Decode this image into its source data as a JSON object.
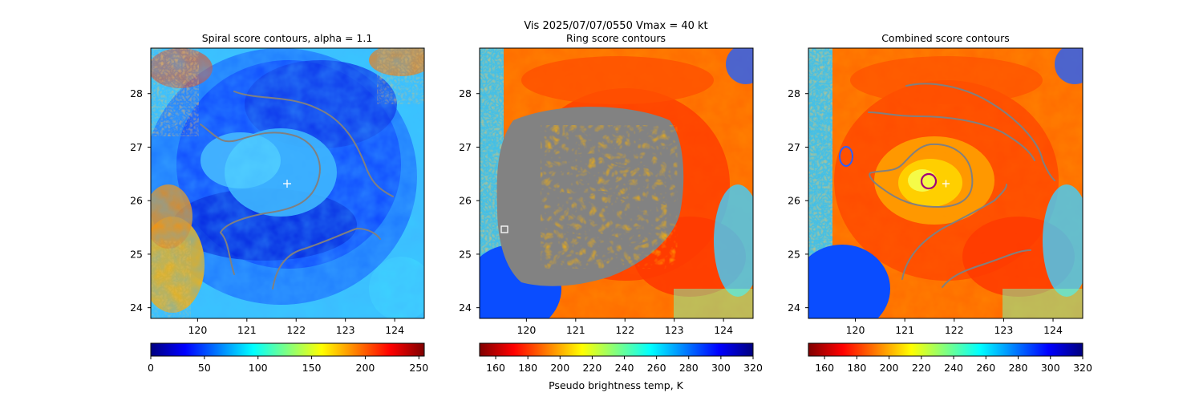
{
  "figure": {
    "suptitle_line1": "Vis  2025/07/07/0550    Vmax = 40 kt"
  },
  "colorscale": {
    "name": "jet",
    "stops": [
      "#7f0000",
      "#ff0000",
      "#ff7f00",
      "#ffff00",
      "#80ff80",
      "#00ffff",
      "#007fff",
      "#0000ff",
      "#00007f"
    ]
  },
  "chart_data": [
    {
      "type": "heatmap",
      "title": "Spiral score contours, alpha =  1.1",
      "x_ticks": [
        "120",
        "121",
        "122",
        "123",
        "124"
      ],
      "y_ticks": [
        "24",
        "25",
        "26",
        "27",
        "28"
      ],
      "xlim": [
        119.05,
        124.6
      ],
      "ylim": [
        23.8,
        28.85
      ],
      "center_marker": {
        "lon": 121.8,
        "lat": 26.32,
        "symbol": "+"
      },
      "colorbar": {
        "min": 0,
        "max": 255,
        "ticks": [
          "0",
          "50",
          "100",
          "150",
          "200",
          "250"
        ],
        "label": "",
        "reversed_jet": true
      },
      "dominant_color": "blue",
      "contour_color": "#808080"
    },
    {
      "type": "heatmap",
      "title": "Ring score contours",
      "x_ticks": [
        "120",
        "121",
        "122",
        "123",
        "124"
      ],
      "y_ticks": [
        "24",
        "25",
        "26",
        "27",
        "28"
      ],
      "xlim": [
        119.05,
        124.6
      ],
      "ylim": [
        23.8,
        28.85
      ],
      "square_marker": {
        "lon": 119.5,
        "lat": 25.5
      },
      "colorbar": {
        "min": 150,
        "max": 320,
        "ticks": [
          "160",
          "180",
          "200",
          "220",
          "240",
          "260",
          "280",
          "300",
          "320"
        ],
        "label": "Pseudo brightness temp, K"
      },
      "dominant_color": "red-orange",
      "masked_region_color": "#808080"
    },
    {
      "type": "heatmap",
      "title": "Combined score contours",
      "x_ticks": [
        "120",
        "121",
        "122",
        "123",
        "124"
      ],
      "y_ticks": [
        "24",
        "25",
        "26",
        "27",
        "28"
      ],
      "xlim": [
        119.05,
        124.6
      ],
      "ylim": [
        23.8,
        28.85
      ],
      "circle_marker": {
        "lon": 121.45,
        "lat": 26.38,
        "color": "#a0007a"
      },
      "center_marker": {
        "lon": 121.8,
        "lat": 26.3,
        "symbol": "+"
      },
      "colorbar": {
        "min": 150,
        "max": 320,
        "ticks": [
          "160",
          "180",
          "200",
          "220",
          "240",
          "260",
          "280",
          "300",
          "320"
        ],
        "label": ""
      },
      "dominant_color": "red-orange",
      "contour_color": "#808080"
    }
  ]
}
